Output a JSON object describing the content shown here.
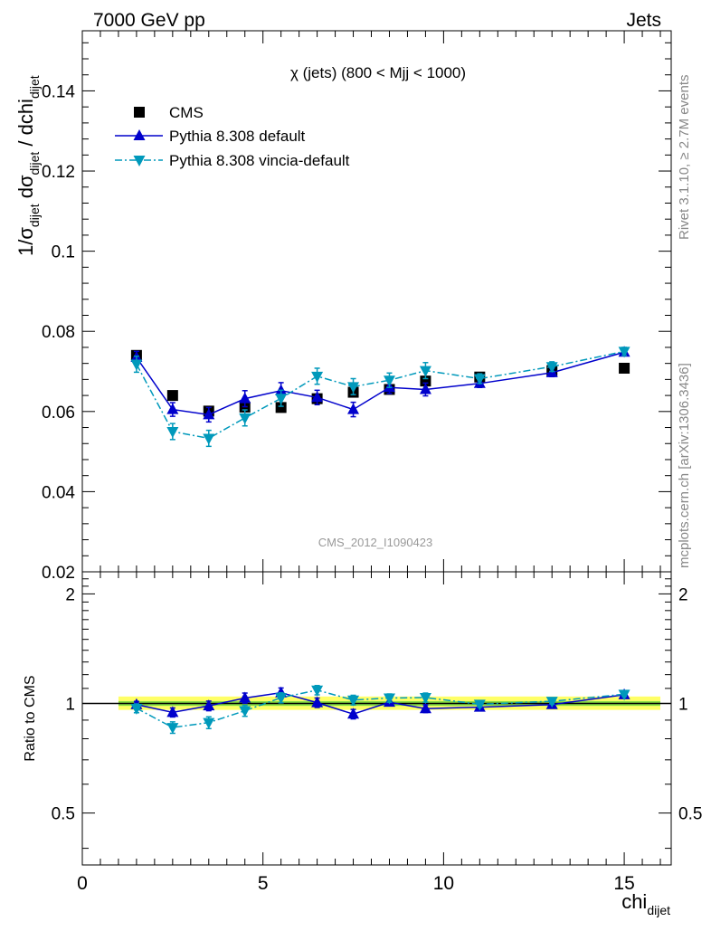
{
  "header": {
    "left": "7000 GeV pp",
    "right": "Jets"
  },
  "side_labels": {
    "rivet": "Rivet 3.1.10, ≥ 2.7M events",
    "mcplots": "mcplots.cern.ch [arXiv:1306.3436]"
  },
  "colors": {
    "cms": "#000000",
    "pythia_default": "#0000cc",
    "pythia_vincia": "#0099bb",
    "band_inner": "#88dd44",
    "band_outer": "#ffff66"
  },
  "chart_data": [
    {
      "type": "scatter",
      "title": "χ (jets) (800 < Mjj < 1000)",
      "watermark": "CMS_2012_I1090423",
      "ylabel": "1/σdijet dσdijet / dchidijet",
      "xlabel": "chidijet",
      "ylim": [
        0.02,
        0.155
      ],
      "xlim": [
        0,
        16.3
      ],
      "y_ticks": [
        "0.02",
        "0.04",
        "0.06",
        "0.08",
        "0.1",
        "0.12",
        "0.14"
      ],
      "legend": [
        "CMS",
        "Pythia 8.308 default",
        "Pythia 8.308 vincia-default"
      ],
      "legend_position": "top-left",
      "series": [
        {
          "name": "CMS",
          "marker": "square",
          "x": [
            1.5,
            2.5,
            3.5,
            4.5,
            5.5,
            6.5,
            7.5,
            8.5,
            9.5,
            11,
            13,
            15
          ],
          "y": [
            0.074,
            0.064,
            0.0601,
            0.0611,
            0.061,
            0.0632,
            0.0648,
            0.0655,
            0.0676,
            0.0686,
            0.0702,
            0.0708
          ],
          "yerr": [
            0.0008,
            0.0006,
            0.0006,
            0.0006,
            0.0006,
            0.0006,
            0.0006,
            0.0006,
            0.0006,
            0.0006,
            0.0006,
            0.0006
          ]
        },
        {
          "name": "Pythia 8.308 default",
          "marker": "triangle-up",
          "line": "solid",
          "x": [
            1.5,
            2.5,
            3.5,
            4.5,
            5.5,
            6.5,
            7.5,
            8.5,
            9.5,
            11,
            13,
            15
          ],
          "y": [
            0.0735,
            0.0605,
            0.0592,
            0.0632,
            0.0652,
            0.0635,
            0.0605,
            0.066,
            0.0655,
            0.067,
            0.0697,
            0.0748
          ],
          "yerr": [
            0.0015,
            0.0017,
            0.0018,
            0.002,
            0.002,
            0.0018,
            0.0018,
            0.0015,
            0.0016,
            0.001,
            0.001,
            0.0008
          ]
        },
        {
          "name": "Pythia 8.308 vincia-default",
          "marker": "triangle-down",
          "line": "dash-dot",
          "x": [
            1.5,
            2.5,
            3.5,
            4.5,
            5.5,
            6.5,
            7.5,
            8.5,
            9.5,
            11,
            13,
            15
          ],
          "y": [
            0.0718,
            0.055,
            0.0533,
            0.0584,
            0.0633,
            0.0688,
            0.0662,
            0.0678,
            0.0702,
            0.0682,
            0.0712,
            0.075
          ],
          "yerr": [
            0.002,
            0.002,
            0.002,
            0.002,
            0.002,
            0.002,
            0.002,
            0.0018,
            0.002,
            0.0012,
            0.0012,
            0.001
          ]
        }
      ]
    },
    {
      "type": "scatter",
      "ylabel": "Ratio to CMS",
      "ylim": [
        0.36,
        2.3
      ],
      "y_scale": "log",
      "xlim": [
        0,
        16.3
      ],
      "y_ticks": [
        "0.5",
        "1",
        "2"
      ],
      "x_ticks": [
        "0",
        "5",
        "10",
        "15"
      ],
      "band": {
        "x": [
          1,
          16
        ],
        "inner": [
          0.985,
          1.015
        ],
        "outer": [
          0.96,
          1.045
        ]
      },
      "series": [
        {
          "name": "CMS",
          "x": [
            1.5,
            15
          ],
          "y": [
            1.0,
            1.0
          ]
        },
        {
          "name": "Pythia 8.308 default",
          "marker": "triangle-up",
          "line": "solid",
          "x": [
            1.5,
            2.5,
            3.5,
            4.5,
            5.5,
            6.5,
            7.5,
            8.5,
            9.5,
            11,
            13,
            15
          ],
          "y": [
            0.993,
            0.945,
            0.985,
            1.035,
            1.07,
            1.005,
            0.935,
            1.008,
            0.968,
            0.977,
            0.993,
            1.057
          ],
          "yerr": [
            0.02,
            0.027,
            0.03,
            0.033,
            0.033,
            0.03,
            0.028,
            0.023,
            0.024,
            0.015,
            0.014,
            0.012
          ]
        },
        {
          "name": "Pythia 8.308 vincia-default",
          "marker": "triangle-down",
          "line": "dash-dot",
          "x": [
            1.5,
            2.5,
            3.5,
            4.5,
            5.5,
            6.5,
            7.5,
            8.5,
            9.5,
            11,
            13,
            15
          ],
          "y": [
            0.97,
            0.859,
            0.886,
            0.955,
            1.037,
            1.088,
            1.022,
            1.035,
            1.038,
            0.995,
            1.014,
            1.06
          ],
          "yerr": [
            0.027,
            0.031,
            0.033,
            0.033,
            0.033,
            0.032,
            0.031,
            0.027,
            0.03,
            0.017,
            0.017,
            0.014
          ]
        }
      ]
    }
  ]
}
